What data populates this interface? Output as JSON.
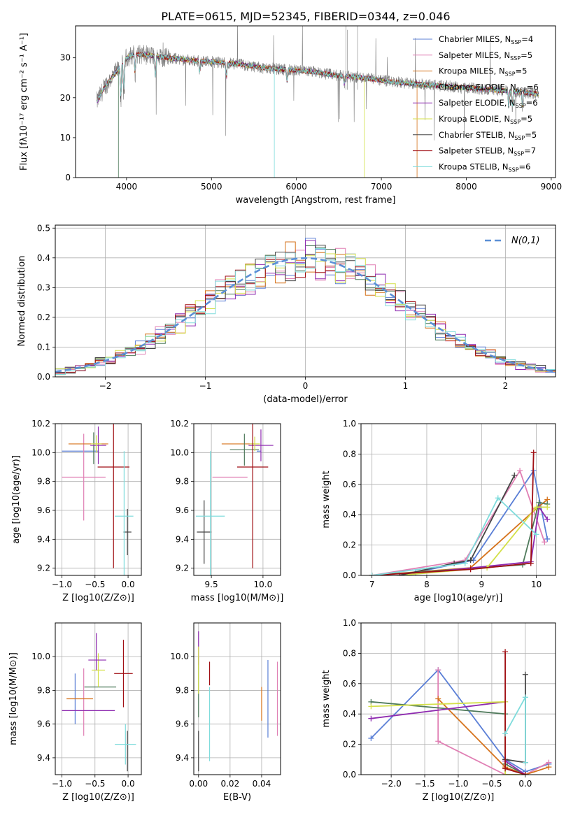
{
  "figure_title": "PLATE=0615, MJD=52345, FIBERID=0344, z=0.046",
  "colors": {
    "Chabrier MILES": "#5b7fd6",
    "Salpeter MILES": "#e07fb4",
    "Kroupa MILES": "#d6731c",
    "Chabrier ELODIE": "#4f7a5b",
    "Salpeter ELODIE": "#8e2bb0",
    "Kroupa ELODIE": "#d4e04a",
    "Chabrier STELIB": "#444444",
    "Salpeter STELIB": "#a00f14",
    "Kroupa STELIB": "#7fdcdc",
    "observed": "#808080",
    "gauss": "#5b8fd6"
  },
  "chart_data": [
    {
      "id": "spectrum",
      "type": "line",
      "xlabel": "wavelength [Angstrom, rest frame]",
      "ylabel": "Flux [fλ10⁻¹⁷ erg cm⁻² s⁻¹ A⁻¹]",
      "xlim": [
        3400,
        9050
      ],
      "ylim": [
        0,
        38
      ],
      "xticks": [
        4000,
        5000,
        6000,
        7000,
        8000,
        9000
      ],
      "yticks": [
        0,
        10,
        20,
        30
      ],
      "legend_position": "top-right",
      "legend": [
        "Chabrier MILES, N_SSP=4",
        "Salpeter MILES, N_SSP=5",
        "Kroupa MILES, N_SSP=5",
        "Chabrier ELODIE, N_SSP=6",
        "Salpeter ELODIE, N_SSP=6",
        "Kroupa ELODIE, N_SSP=5",
        "Chabrier STELIB, N_SSP=5",
        "Salpeter STELIB, N_SSP=7",
        "Kroupa STELIB, N_SSP=6"
      ],
      "continuum": {
        "x": [
          3650,
          3750,
          3900,
          4000,
          4100,
          4300,
          4500,
          4700,
          5000,
          5300,
          5600,
          5900,
          6200,
          6500,
          6800,
          7100,
          7400,
          7700,
          8000,
          8300,
          8600,
          8850
        ],
        "y": [
          19,
          23,
          27,
          30,
          31,
          30.5,
          30,
          29.5,
          29,
          28.5,
          27.5,
          27,
          26.5,
          25.5,
          25,
          24,
          23.5,
          23,
          22.5,
          22,
          21.5,
          21
        ]
      }
    },
    {
      "id": "residuals",
      "type": "histogram",
      "xlabel": "(data-model)/error",
      "ylabel": "Normed distribution",
      "xlim": [
        -2.5,
        2.5
      ],
      "ylim": [
        0,
        0.51
      ],
      "xticks": [
        -2,
        -1,
        0,
        1,
        2
      ],
      "yticks": [
        0.0,
        0.1,
        0.2,
        0.3,
        0.4,
        0.5
      ],
      "legend_position": "top-right",
      "gauss_label": "N(0,1)"
    },
    {
      "id": "age_vs_Z",
      "type": "errorbar",
      "xlabel": "Z [log10(Z/Z⊙)]",
      "ylabel": "age [log10(age/yr)]",
      "xlim": [
        -1.1,
        0.2
      ],
      "ylim": [
        9.15,
        10.2
      ],
      "xticks": [
        -1.0,
        -0.5,
        0.0
      ],
      "yticks": [
        9.2,
        9.4,
        9.6,
        9.8,
        10.0,
        10.2
      ],
      "points": [
        {
          "model": "Chabrier MILES",
          "x": -0.72,
          "xerr": 0.28,
          "y": 10.01,
          "yerr": 0.0
        },
        {
          "model": "Salpeter MILES",
          "x": -0.67,
          "xerr": 0.33,
          "y": 9.83,
          "yerr": 0.3
        },
        {
          "model": "Kroupa MILES",
          "x": -0.6,
          "xerr": 0.3,
          "y": 10.06,
          "yerr": 0.0
        },
        {
          "model": "Chabrier ELODIE",
          "x": -0.52,
          "xerr": 0.0,
          "y": 10.03,
          "yerr": 0.11
        },
        {
          "model": "Salpeter ELODIE",
          "x": -0.45,
          "xerr": 0.12,
          "y": 10.05,
          "yerr": 0.13
        },
        {
          "model": "Kroupa ELODIE",
          "x": -0.48,
          "xerr": 0.08,
          "y": 10.06,
          "yerr": 0.06
        },
        {
          "model": "Chabrier STELIB",
          "x": -0.01,
          "xerr": 0.06,
          "y": 9.45,
          "yerr": 0.16
        },
        {
          "model": "Salpeter STELIB",
          "x": -0.22,
          "xerr": 0.24,
          "y": 9.9,
          "yerr": 0.7
        },
        {
          "model": "Kroupa STELIB",
          "x": -0.06,
          "xerr": 0.14,
          "y": 9.56,
          "yerr": 0.45
        }
      ]
    },
    {
      "id": "age_vs_mass",
      "type": "errorbar",
      "xlabel": "mass [log10(M/M⊙)]",
      "xlim": [
        9.33,
        10.17
      ],
      "ylim": [
        9.15,
        10.2
      ],
      "xticks": [
        9.5,
        10.0
      ],
      "yticks": [
        9.2,
        9.4,
        9.6,
        9.8,
        10.0,
        10.2
      ],
      "points": [
        {
          "model": "Chabrier MILES",
          "x": 9.96,
          "xerr": 0.0,
          "y": 10.01,
          "yerr": 0.0
        },
        {
          "model": "Salpeter MILES",
          "x": 9.68,
          "xerr": 0.17,
          "y": 9.83,
          "yerr": 0.0
        },
        {
          "model": "Kroupa MILES",
          "x": 9.76,
          "xerr": 0.16,
          "y": 10.06,
          "yerr": 0.0
        },
        {
          "model": "Chabrier ELODIE",
          "x": 9.82,
          "xerr": 0.14,
          "y": 10.02,
          "yerr": 0.11
        },
        {
          "model": "Salpeter ELODIE",
          "x": 9.98,
          "xerr": 0.12,
          "y": 10.05,
          "yerr": 0.11
        },
        {
          "model": "Kroupa ELODIE",
          "x": 9.92,
          "xerr": 0.05,
          "y": 10.06,
          "yerr": 0.05
        },
        {
          "model": "Chabrier STELIB",
          "x": 9.43,
          "xerr": 0.07,
          "y": 9.45,
          "yerr": 0.22
        },
        {
          "model": "Salpeter STELIB",
          "x": 9.9,
          "xerr": 0.15,
          "y": 9.9,
          "yerr": 0.7
        },
        {
          "model": "Kroupa STELIB",
          "x": 9.49,
          "xerr": 0.14,
          "y": 9.56,
          "yerr": 0.45
        }
      ]
    },
    {
      "id": "massweight_vs_age",
      "type": "line",
      "xlabel": "age [log10(age/yr)]",
      "ylabel": "mass weight",
      "xlim": [
        6.8,
        10.35
      ],
      "ylim": [
        0,
        1.0
      ],
      "xticks": [
        7,
        8,
        9,
        10
      ],
      "yticks": [
        0.0,
        0.2,
        0.4,
        0.6,
        0.8,
        1.0
      ],
      "series": [
        {
          "model": "Chabrier MILES",
          "x": [
            7.8,
            8.85,
            9.95,
            10.2
          ],
          "y": [
            0.02,
            0.1,
            0.69,
            0.24
          ]
        },
        {
          "model": "Salpeter MILES",
          "x": [
            7.0,
            8.7,
            9.7,
            10.15
          ],
          "y": [
            0.0,
            0.1,
            0.69,
            0.22
          ]
        },
        {
          "model": "Kroupa MILES",
          "x": [
            7.0,
            8.8,
            10.0,
            10.2
          ],
          "y": [
            0.0,
            0.05,
            0.44,
            0.5
          ]
        },
        {
          "model": "Chabrier ELODIE",
          "x": [
            7.0,
            9.75,
            10.05,
            10.2
          ],
          "y": [
            0.0,
            0.07,
            0.48,
            0.47
          ]
        },
        {
          "model": "Salpeter ELODIE",
          "x": [
            7.5,
            9.9,
            10.05,
            10.2
          ],
          "y": [
            0.0,
            0.09,
            0.45,
            0.37
          ]
        },
        {
          "model": "Kroupa ELODIE",
          "x": [
            7.5,
            9.1,
            10.0,
            10.2
          ],
          "y": [
            0.0,
            0.05,
            0.45,
            0.45
          ]
        },
        {
          "model": "Chabrier STELIB",
          "x": [
            7.5,
            8.5,
            8.8,
            9.6
          ],
          "y": [
            0.0,
            0.08,
            0.1,
            0.66
          ]
        },
        {
          "model": "Salpeter STELIB",
          "x": [
            7.0,
            8.8,
            9.9,
            9.95
          ],
          "y": [
            0.0,
            0.04,
            0.08,
            0.81
          ]
        },
        {
          "model": "Kroupa STELIB",
          "x": [
            7.0,
            8.7,
            9.3,
            10.0
          ],
          "y": [
            0.0,
            0.08,
            0.51,
            0.27
          ]
        }
      ]
    },
    {
      "id": "mass_vs_Z",
      "type": "errorbar",
      "xlabel": "Z [log10(Z/Z⊙)]",
      "ylabel": "mass [log10(M/M⊙)]",
      "xlim": [
        -1.1,
        0.2
      ],
      "ylim": [
        9.3,
        10.2
      ],
      "xticks": [
        -1.0,
        -0.5,
        0.0
      ],
      "yticks": [
        9.4,
        9.6,
        9.8,
        10.0
      ],
      "points": [
        {
          "model": "Chabrier MILES",
          "x": -0.8,
          "xerr": 0.0,
          "y": 9.75,
          "yerr": 0.15
        },
        {
          "model": "Salpeter MILES",
          "x": -0.67,
          "xerr": 0.0,
          "y": 9.73,
          "yerr": 0.2
        },
        {
          "model": "Kroupa MILES",
          "x": -0.73,
          "xerr": 0.2,
          "y": 9.75,
          "yerr": 0.0
        },
        {
          "model": "Chabrier ELODIE",
          "x": -0.42,
          "xerr": 0.24,
          "y": 9.82,
          "yerr": 0.0
        },
        {
          "model": "Salpeter ELODIE",
          "x": -0.6,
          "xerr": 0.4,
          "y": 9.68,
          "yerr": 0.0
        },
        {
          "model": "Kroupa ELODIE",
          "x": -0.45,
          "xerr": 0.1,
          "y": 9.92,
          "yerr": 0.1
        },
        {
          "model": "Chabrier STELIB",
          "x": -0.01,
          "xerr": 0.0,
          "y": 9.44,
          "yerr": 0.12
        },
        {
          "model": "Salpeter STELIB",
          "x": -0.07,
          "xerr": 0.14,
          "y": 9.9,
          "yerr": 0.2
        },
        {
          "model": "Kroupa STELIB",
          "x": -0.04,
          "xerr": 0.16,
          "y": 9.48,
          "yerr": 0.12
        }
      ],
      "extra_segments": [
        {
          "model": "Salpeter ELODIE",
          "x": -0.48,
          "y1": 9.92,
          "y2": 10.14,
          "x1": -0.6,
          "x2": -0.33,
          "yh": 9.98
        }
      ]
    },
    {
      "id": "mass_vs_ebv",
      "type": "errorbar",
      "xlabel": "E(B-V)",
      "xlim": [
        -0.003,
        0.052
      ],
      "ylim": [
        9.3,
        10.2
      ],
      "xticks": [
        0.0,
        0.02,
        0.04
      ],
      "yticks": [
        9.4,
        9.6,
        9.8,
        10.0
      ],
      "points": [
        {
          "model": "Chabrier MILES",
          "x": 0.044,
          "xerr": 0.0,
          "y": 9.75,
          "yerr": 0.23
        },
        {
          "model": "Salpeter MILES",
          "x": 0.05,
          "xerr": 0.0,
          "y": 9.75,
          "yerr": 0.22
        },
        {
          "model": "Kroupa MILES",
          "x": 0.04,
          "xerr": 0.0,
          "y": 9.72,
          "yerr": 0.1
        },
        {
          "model": "Chabrier ELODIE",
          "x": 0.0,
          "xerr": 0.0,
          "y": 9.82,
          "yerr": 0.18
        },
        {
          "model": "Salpeter ELODIE",
          "x": 0.0,
          "xerr": 0.0,
          "y": 10.05,
          "yerr": 0.1
        },
        {
          "model": "Kroupa ELODIE",
          "x": 0.0,
          "xerr": 0.0,
          "y": 9.92,
          "yerr": 0.14
        },
        {
          "model": "Chabrier STELIB",
          "x": 0.0,
          "xerr": 0.0,
          "y": 9.44,
          "yerr": 0.12
        },
        {
          "model": "Salpeter STELIB",
          "x": 0.007,
          "xerr": 0.0,
          "y": 9.9,
          "yerr": 0.07
        },
        {
          "model": "Kroupa STELIB",
          "x": 0.007,
          "xerr": 0.0,
          "y": 9.6,
          "yerr": 0.22
        }
      ]
    },
    {
      "id": "massweight_vs_Z",
      "type": "line",
      "xlabel": "Z [log10(Z/Z⊙)]",
      "ylabel": "mass weight",
      "xlim": [
        -2.45,
        0.45
      ],
      "ylim": [
        0,
        1.0
      ],
      "xticks": [
        -2.0,
        -1.5,
        -1.0,
        -0.5,
        0.0
      ],
      "yticks": [
        0.0,
        0.2,
        0.4,
        0.6,
        0.8,
        1.0
      ],
      "series": [
        {
          "model": "Chabrier MILES",
          "x": [
            -2.3,
            -1.3,
            -0.3,
            0.0,
            0.35
          ],
          "y": [
            0.24,
            0.69,
            0.1,
            0.02,
            0.07
          ]
        },
        {
          "model": "Salpeter MILES",
          "x": [
            -1.3,
            -1.3,
            -0.3,
            0.0,
            0.35
          ],
          "y": [
            0.69,
            0.22,
            0.0,
            0.0,
            0.08
          ]
        },
        {
          "model": "Kroupa MILES",
          "x": [
            -1.3,
            -0.3,
            0.0,
            0.35
          ],
          "y": [
            0.5,
            0.05,
            0.0,
            0.05
          ]
        },
        {
          "model": "Chabrier ELODIE",
          "x": [
            -2.3,
            -0.3,
            -0.3,
            0.0
          ],
          "y": [
            0.48,
            0.4,
            0.07,
            0.0
          ]
        },
        {
          "model": "Salpeter ELODIE",
          "x": [
            -2.3,
            -0.3,
            -0.3,
            0.0
          ],
          "y": [
            0.37,
            0.48,
            0.09,
            0.0
          ]
        },
        {
          "model": "Kroupa ELODIE",
          "x": [
            -2.3,
            -0.3,
            -0.3,
            0.0
          ],
          "y": [
            0.45,
            0.48,
            0.0,
            0.0
          ]
        },
        {
          "model": "Chabrier STELIB",
          "x": [
            -0.3,
            0.0,
            0.0
          ],
          "y": [
            0.1,
            0.08,
            0.66
          ]
        },
        {
          "model": "Salpeter STELIB",
          "x": [
            -0.3,
            -0.3,
            0.0
          ],
          "y": [
            0.81,
            0.04,
            0.0
          ]
        },
        {
          "model": "Kroupa STELIB",
          "x": [
            -0.3,
            0.0,
            0.0
          ],
          "y": [
            0.27,
            0.51,
            0.08
          ]
        }
      ]
    }
  ]
}
